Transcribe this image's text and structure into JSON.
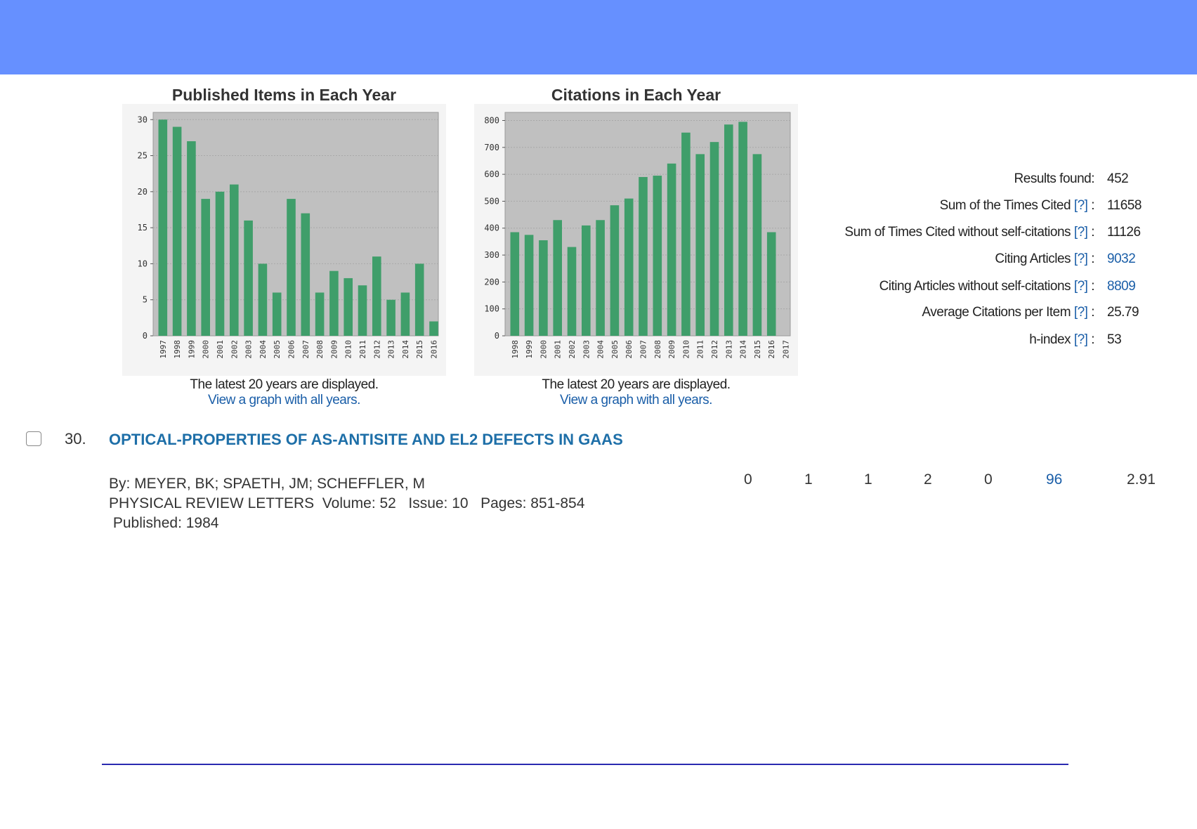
{
  "charts": [
    {
      "title": "Published Items in Each Year",
      "note": "The latest 20 years are displayed.",
      "link": "View a graph with all years.",
      "chart_data": {
        "type": "bar",
        "categories": [
          "1997",
          "1998",
          "1999",
          "2000",
          "2001",
          "2002",
          "2003",
          "2004",
          "2005",
          "2006",
          "2007",
          "2008",
          "2009",
          "2010",
          "2011",
          "2012",
          "2013",
          "2014",
          "2015",
          "2016"
        ],
        "values": [
          30,
          29,
          27,
          19,
          20,
          21,
          16,
          10,
          6,
          19,
          17,
          6,
          9,
          8,
          7,
          11,
          5,
          6,
          10,
          2
        ],
        "ylim": [
          0,
          31
        ],
        "yticks": [
          0,
          5,
          10,
          15,
          20,
          25,
          30
        ],
        "bar_color": "#3f9e6a",
        "plot_bg": "#c0c0c0",
        "grid": true
      }
    },
    {
      "title": "Citations in Each Year",
      "note": "The latest 20 years are displayed.",
      "link": "View a graph with all years.",
      "chart_data": {
        "type": "bar",
        "categories": [
          "1998",
          "1999",
          "2000",
          "2001",
          "2002",
          "2003",
          "2004",
          "2005",
          "2006",
          "2007",
          "2008",
          "2009",
          "2010",
          "2011",
          "2012",
          "2013",
          "2014",
          "2015",
          "2016",
          "2017"
        ],
        "values": [
          385,
          375,
          355,
          430,
          330,
          410,
          430,
          485,
          510,
          590,
          595,
          640,
          755,
          675,
          720,
          785,
          795,
          675,
          385,
          0
        ],
        "ylim": [
          0,
          830
        ],
        "yticks": [
          0,
          100,
          200,
          300,
          400,
          500,
          600,
          700,
          800
        ],
        "bar_color": "#3f9e6a",
        "plot_bg": "#c0c0c0",
        "grid": true
      }
    }
  ],
  "stats": [
    {
      "label": "Results found:",
      "help": "",
      "value": "452",
      "link": false
    },
    {
      "label": "Sum of the Times Cited",
      "help": "[?]",
      "value": "11658",
      "link": false
    },
    {
      "label": "Sum of Times Cited without self-citations",
      "help": "[?]",
      "value": "11126",
      "link": false
    },
    {
      "label": "Citing Articles",
      "help": "[?]",
      "value": "9032",
      "link": true
    },
    {
      "label": "Citing Articles without self-citations",
      "help": "[?]",
      "value": "8809",
      "link": true
    },
    {
      "label": "Average Citations per Item",
      "help": "[?]",
      "value": "25.79",
      "link": false
    },
    {
      "label": "h-index",
      "help": "[?]",
      "value": "53",
      "link": false
    }
  ],
  "record": {
    "number": "30.",
    "title": "OPTICAL-PROPERTIES OF AS-ANTISITE AND EL2 DEFECTS IN GAAS",
    "authors": "By: MEYER, BK; SPAETH, JM; SCHEFFLER, M",
    "source": "PHYSICAL REVIEW LETTERS  Volume: 52   Issue: 10   Pages: 851-854",
    "published": " Published: 1984",
    "counts": [
      {
        "value": "0",
        "link": false
      },
      {
        "value": "1",
        "link": false
      },
      {
        "value": "1",
        "link": false
      },
      {
        "value": "2",
        "link": false
      },
      {
        "value": "0",
        "link": false
      },
      {
        "value": "96",
        "link": true
      },
      {
        "value": "2.91",
        "link": false
      }
    ]
  },
  "colors": {
    "header_band": "#6690ff",
    "link": "#1a5ea8",
    "title": "#1e6fa8",
    "rule": "#2a2ab0"
  }
}
